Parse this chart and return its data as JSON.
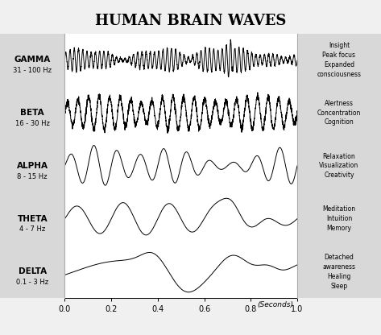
{
  "title": "HUMAN BRAIN WAVES",
  "title_fontsize": 13,
  "wave_types": [
    "GAMMA",
    "BETA",
    "ALPHA",
    "THETA",
    "DELTA"
  ],
  "freq_labels": [
    "31 - 100 Hz",
    "16 - 30 Hz",
    "8 - 15 Hz",
    "4 - 7 Hz",
    "0.1 - 3 Hz"
  ],
  "right_labels": [
    "Insight\nPeak focus\nExpanded\nconsciousness",
    "Alertness\nConcentration\nCognition",
    "Relaxation\nVisualization\nCreativity",
    "Meditation\nIntuition\nMemory",
    "Detached\nawareness\nHealing\nSleep"
  ],
  "xlabel": "(Seconds)",
  "xticks": [
    0.0,
    0.2,
    0.4,
    0.6,
    0.8,
    1.0
  ],
  "background_color": "#f0f0f0",
  "plot_bg_color": "#ffffff",
  "left_panel_color": "#d8d8d8",
  "wave_color": "#000000",
  "gamma_freq": 55,
  "beta_freq": 22,
  "alpha_freq": 10,
  "theta_freq": 5,
  "delta_freq": 1.5
}
